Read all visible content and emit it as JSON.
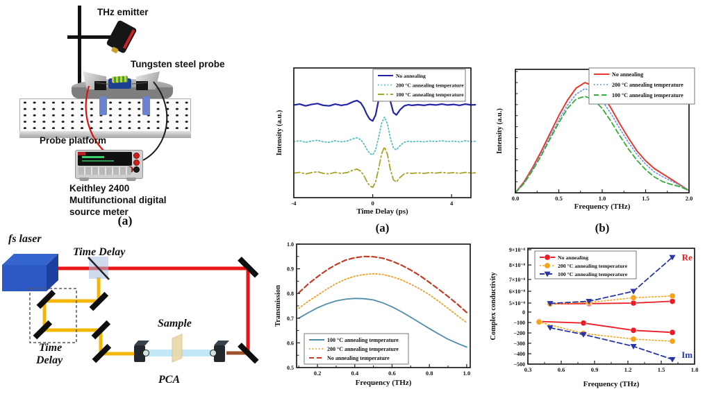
{
  "panels": {
    "probe_setup": {
      "labels": {
        "thz_emitter": "THz emitter",
        "tungsten_probe": "Tungsten steel probe",
        "probe_platform": "Probe platform",
        "meter_line1": "Keithley 2400",
        "meter_line2": "Multifunctional digital",
        "meter_line3": "source meter"
      },
      "caption": "(a)"
    },
    "optics": {
      "labels": {
        "fs_laser": "fs laser",
        "time_delay_top": "Time Delay",
        "time_delay_line1": "Time",
        "time_delay_line2": "Delay",
        "sample": "Sample",
        "pca": "PCA"
      }
    }
  },
  "chart_data": [
    {
      "id": "pulse",
      "type": "line",
      "caption": "(a)",
      "xlabel": "Time Delay (ps)",
      "ylabel": "Intensity (a.u.)",
      "xlim": [
        -4,
        4.98
      ],
      "ylim": [
        -0.75,
        3.35
      ],
      "xticks": [
        {
          "v": -4,
          "label": "-4"
        },
        {
          "v": 0,
          "label": "0"
        },
        {
          "v": 4,
          "label": "4"
        }
      ],
      "yticks": [],
      "grid": false,
      "legend_pos": "top-center",
      "x": [
        -4,
        -3.7,
        -3.4,
        -3.1,
        -2.8,
        -2.5,
        -2.2,
        -1.9,
        -1.6,
        -1.3,
        -1.0,
        -0.8,
        -0.6,
        -0.45,
        -0.3,
        -0.15,
        0,
        0.15,
        0.3,
        0.45,
        0.6,
        0.75,
        0.9,
        1.05,
        1.2,
        1.4,
        1.6,
        1.8,
        2.0,
        2.3,
        2.6,
        2.9,
        3.2,
        3.5,
        3.8,
        4.1,
        4.4,
        4.7,
        5.0,
        5.2
      ],
      "base_y": [
        0.03,
        0.06,
        0.0,
        0.05,
        0.08,
        0.02,
        0.0,
        0.06,
        0.02,
        0.05,
        0.14,
        0.18,
        0.1,
        -0.06,
        -0.28,
        -0.44,
        -0.5,
        -0.3,
        0.2,
        0.75,
        1.0,
        0.72,
        0.15,
        -0.22,
        -0.3,
        -0.12,
        0.0,
        0.04,
        0.02,
        0.04,
        0.02,
        0.05,
        0.03,
        0.06,
        0.03,
        0.05,
        0.02,
        0.06,
        0.03,
        0.04
      ],
      "series": [
        {
          "name": "No annealing",
          "color": "#2323a8",
          "dash": "solid",
          "scale": 0.95,
          "offset": 2.15,
          "lw": 2.2
        },
        {
          "name": "200 °C annealing temperature",
          "color": "#58bdbd",
          "dash": "dotted",
          "scale": 0.8,
          "offset": 1.0,
          "lw": 1.8
        },
        {
          "name": "100 °C annealing temperature",
          "color": "#a4a324",
          "dash": "dashdot",
          "scale": 0.85,
          "offset": 0.0,
          "lw": 1.8
        }
      ]
    },
    {
      "id": "spectrum",
      "type": "line",
      "caption": "(b)",
      "xlabel": "Frequency (THz)",
      "ylabel": "Intensity (a.u.)",
      "xlim": [
        0,
        2
      ],
      "ylim": [
        0,
        1.12
      ],
      "xticks": [
        {
          "v": 0,
          "label": "0.0"
        },
        {
          "v": 0.5,
          "label": "0.5"
        },
        {
          "v": 1.0,
          "label": "1.0"
        },
        {
          "v": 1.5,
          "label": "1.5"
        },
        {
          "v": 2.0,
          "label": "2.0"
        }
      ],
      "xminor": [
        0.25,
        0.75,
        1.25,
        1.75
      ],
      "yticks": [],
      "yminor": [
        0.1,
        0.2,
        0.3,
        0.4,
        0.5,
        0.6,
        0.7,
        0.8,
        0.9,
        1.0,
        1.1
      ],
      "x": [
        0,
        0.1,
        0.2,
        0.3,
        0.4,
        0.5,
        0.6,
        0.7,
        0.8,
        0.9,
        1.0,
        1.1,
        1.2,
        1.3,
        1.4,
        1.5,
        1.6,
        1.7,
        1.8,
        1.9,
        2.0
      ],
      "series": [
        {
          "name": "No annealing",
          "color": "#e8382e",
          "dash": "solid",
          "lw": 2.0,
          "y": [
            0,
            0.1,
            0.23,
            0.38,
            0.54,
            0.7,
            0.84,
            0.95,
            1.0,
            0.97,
            0.89,
            0.77,
            0.63,
            0.5,
            0.38,
            0.29,
            0.22,
            0.17,
            0.12,
            0.07,
            0.02
          ]
        },
        {
          "name": "200 °C annealing temperature",
          "color": "#6f9fe8",
          "dash": "dotted",
          "lw": 1.8,
          "y": [
            0,
            0.09,
            0.215,
            0.355,
            0.51,
            0.66,
            0.795,
            0.895,
            0.945,
            0.915,
            0.835,
            0.72,
            0.585,
            0.46,
            0.35,
            0.26,
            0.19,
            0.145,
            0.105,
            0.065,
            0.02
          ]
        },
        {
          "name": "100 °C annealing temperature",
          "color": "#2fae36",
          "dash": "dashed",
          "lw": 1.8,
          "y": [
            0,
            0.085,
            0.205,
            0.34,
            0.49,
            0.635,
            0.765,
            0.85,
            0.875,
            0.845,
            0.765,
            0.65,
            0.52,
            0.4,
            0.295,
            0.21,
            0.145,
            0.1,
            0.075,
            0.055,
            0.02
          ]
        }
      ]
    },
    {
      "id": "transmission",
      "type": "line",
      "xlabel": "Frequency (THz)",
      "ylabel": "Transmission",
      "xlim": [
        0.088,
        1.019
      ],
      "ylim": [
        0.5,
        1.0
      ],
      "xticks": [
        {
          "v": 0.2,
          "label": "0.2"
        },
        {
          "v": 0.4,
          "label": "0.4"
        },
        {
          "v": 0.6,
          "label": "0.6"
        },
        {
          "v": 0.8,
          "label": "0.8"
        },
        {
          "v": 1.0,
          "label": "1.0"
        }
      ],
      "xminor": [
        0.1,
        0.3,
        0.5,
        0.7,
        0.9
      ],
      "yticks": [
        {
          "v": 0.5,
          "label": "0.5"
        },
        {
          "v": 0.6,
          "label": "0.6"
        },
        {
          "v": 0.7,
          "label": "0.7"
        },
        {
          "v": 0.8,
          "label": "0.8"
        },
        {
          "v": 0.9,
          "label": "0.9"
        },
        {
          "v": 1.0,
          "label": "1.0"
        }
      ],
      "yminor": [
        0.55,
        0.65,
        0.75,
        0.85,
        0.95
      ],
      "x": [
        0.1,
        0.15,
        0.2,
        0.25,
        0.3,
        0.35,
        0.4,
        0.45,
        0.5,
        0.55,
        0.6,
        0.65,
        0.7,
        0.75,
        0.8,
        0.85,
        0.9,
        0.95,
        1.0
      ],
      "series": [
        {
          "name": "100 °C annealing temperature",
          "color": "#4d8cab",
          "dash": "solid",
          "lw": 1.8,
          "y": [
            0.7,
            0.722,
            0.742,
            0.758,
            0.77,
            0.777,
            0.78,
            0.779,
            0.774,
            0.762,
            0.746,
            0.726,
            0.704,
            0.681,
            0.658,
            0.636,
            0.615,
            0.598,
            0.583
          ]
        },
        {
          "name": "200 °C annealing temperature",
          "color": "#f0a32f",
          "dash": "dotted",
          "lw": 1.9,
          "y": [
            0.74,
            0.768,
            0.793,
            0.818,
            0.84,
            0.858,
            0.87,
            0.877,
            0.88,
            0.877,
            0.868,
            0.855,
            0.838,
            0.818,
            0.795,
            0.768,
            0.74,
            0.71,
            0.682
          ]
        },
        {
          "name": "No annealing temperature",
          "color": "#c53a25",
          "dash": "dashed",
          "lw": 2.2,
          "y": [
            0.803,
            0.838,
            0.868,
            0.895,
            0.917,
            0.935,
            0.945,
            0.95,
            0.949,
            0.943,
            0.931,
            0.915,
            0.895,
            0.872,
            0.845,
            0.817,
            0.788,
            0.757,
            0.723
          ]
        }
      ]
    },
    {
      "id": "conductivity",
      "type": "scatter-line",
      "xlabel": "Frequency (THz)",
      "ylabel": "Complex conductivity",
      "xlim": [
        0.3,
        1.8
      ],
      "xticks": [
        {
          "v": 0.3,
          "label": "0.3"
        },
        {
          "v": 0.6,
          "label": "0.6"
        },
        {
          "v": 0.9,
          "label": "0.9"
        },
        {
          "v": 1.2,
          "label": "1.2"
        },
        {
          "v": 1.5,
          "label": "1.5"
        },
        {
          "v": 1.8,
          "label": "1.8"
        }
      ],
      "xminor": [
        0.45,
        0.75,
        1.05,
        1.35,
        1.65
      ],
      "ymap_anchors": [
        [
          9,
          0.012
        ],
        [
          8,
          0.144
        ],
        [
          7,
          0.269
        ],
        [
          6,
          0.371
        ],
        [
          5,
          0.473
        ],
        [
          0,
          0.551
        ],
        [
          -100,
          0.641
        ],
        [
          -200,
          0.731
        ],
        [
          -300,
          0.82
        ],
        [
          -400,
          0.91
        ],
        [
          -500,
          1.0
        ]
      ],
      "yticks": [
        {
          "v": 9,
          "label": "9×10⁻⁸"
        },
        {
          "v": 8,
          "label": "8×10⁻⁸"
        },
        {
          "v": 7,
          "label": "7×10⁻⁸"
        },
        {
          "v": 6,
          "label": "6×10⁻⁸"
        },
        {
          "v": 5,
          "label": "5×10⁻⁸"
        },
        {
          "v": 0,
          "label": "0"
        },
        {
          "v": -100,
          "label": "−100"
        },
        {
          "v": -200,
          "label": "−200"
        },
        {
          "v": -300,
          "label": "−300"
        },
        {
          "v": -400,
          "label": "−400"
        },
        {
          "v": -500,
          "label": "−500"
        }
      ],
      "series": [
        {
          "name": "No annealing",
          "color": "#ed1c24",
          "dash": "solid",
          "marker": "circle",
          "lw": 1.8,
          "points": [
            [
              0.5,
              4.6
            ],
            [
              0.85,
              4.7
            ],
            [
              1.25,
              5.0
            ],
            [
              1.6,
              5.15
            ]
          ]
        },
        {
          "name": "200 °C annealing temperature",
          "color": "#f5a31a",
          "dash": "dotted",
          "marker": "circle",
          "lw": 1.6,
          "points": [
            [
              0.5,
              4.55
            ],
            [
              0.85,
              5.05
            ],
            [
              1.25,
              5.45
            ],
            [
              1.6,
              5.6
            ]
          ]
        },
        {
          "name": "100 °C annealing temperature",
          "color": "#2a35a8",
          "dash": "dashed",
          "marker": "triangle-down",
          "lw": 1.8,
          "points": [
            [
              0.5,
              4.8
            ],
            [
              0.85,
              5.15
            ],
            [
              1.25,
              6.0
            ],
            [
              1.6,
              8.5
            ]
          ]
        },
        {
          "color": "#ed1c24",
          "dash": "solid",
          "marker": "circle",
          "lw": 1.8,
          "points": [
            [
              0.4,
              -90
            ],
            [
              0.8,
              -105
            ],
            [
              1.25,
              -175
            ],
            [
              1.6,
              -195
            ]
          ]
        },
        {
          "color": "#f5a31a",
          "dash": "dotted",
          "marker": "circle",
          "lw": 1.6,
          "points": [
            [
              0.4,
              -95
            ],
            [
              0.8,
              -205
            ],
            [
              1.25,
              -260
            ],
            [
              1.6,
              -280
            ]
          ]
        },
        {
          "color": "#2a35a8",
          "dash": "dashed",
          "marker": "triangle-down",
          "lw": 1.8,
          "points": [
            [
              0.5,
              -150
            ],
            [
              0.8,
              -215
            ],
            [
              1.25,
              -330
            ],
            [
              1.6,
              -455
            ]
          ]
        }
      ],
      "annotations": [
        {
          "text": "Re",
          "color": "#ed1c24",
          "fx": 0.955,
          "fy": 0.105
        },
        {
          "text": "Im",
          "color": "#2a35a8",
          "fx": 0.955,
          "fy": 0.945
        }
      ]
    }
  ]
}
